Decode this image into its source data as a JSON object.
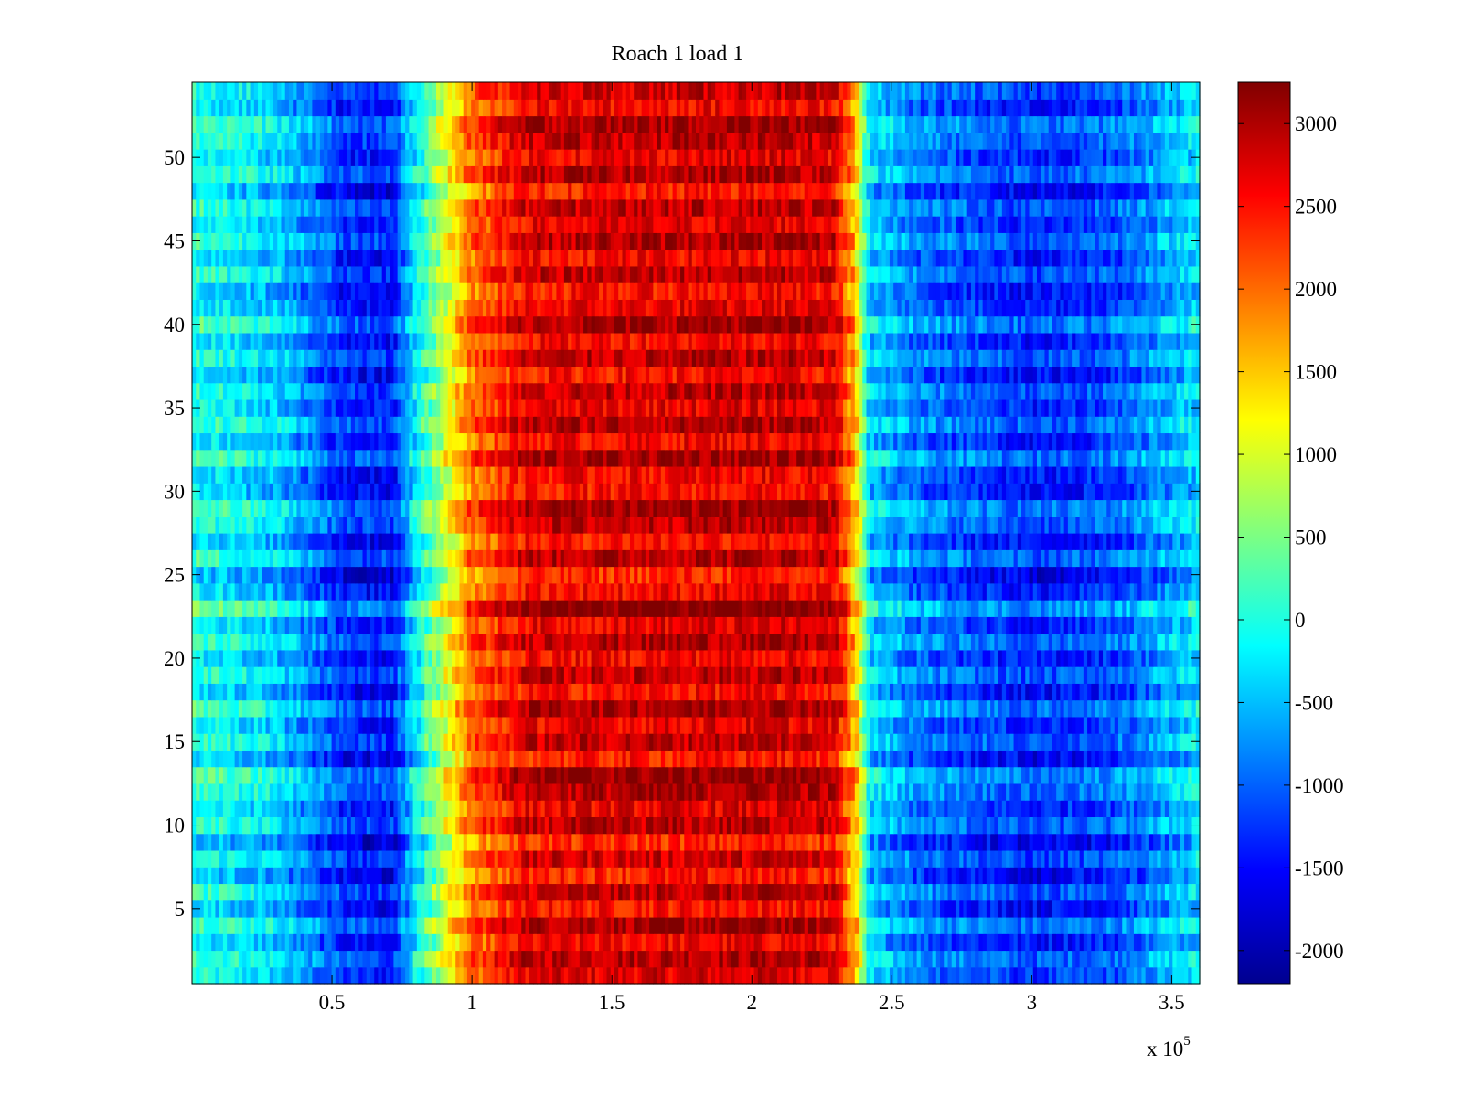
{
  "chart_data": {
    "type": "heatmap",
    "title": "Roach 1 load 1",
    "xlabel": "",
    "ylabel": "",
    "x_multiplier_label": "x 10",
    "x_multiplier_exponent": "5",
    "xlim": [
      0,
      3.6
    ],
    "ylim": [
      0.5,
      54.5
    ],
    "x_ticks": [
      0.5,
      1,
      1.5,
      2,
      2.5,
      3,
      3.5
    ],
    "x_tick_labels": [
      "0.5",
      "1",
      "1.5",
      "2",
      "2.5",
      "3",
      "3.5"
    ],
    "y_ticks": [
      5,
      10,
      15,
      20,
      25,
      30,
      35,
      40,
      45,
      50
    ],
    "y_tick_labels": [
      "5",
      "10",
      "15",
      "20",
      "25",
      "30",
      "35",
      "40",
      "45",
      "50"
    ],
    "rows": 54,
    "colorbar": {
      "colormap": "jet",
      "clim": [
        -2200,
        3250
      ],
      "ticks": [
        -2000,
        -1500,
        -1000,
        -500,
        0,
        500,
        1000,
        1500,
        2000,
        2500,
        3000
      ],
      "tick_labels": [
        "-2000",
        "-1500",
        "-1000",
        "-500",
        "0",
        "500",
        "1000",
        "1500",
        "2000",
        "2500",
        "3000"
      ]
    },
    "value_profile_x": [
      0,
      0.3,
      0.55,
      0.72,
      0.8,
      0.9,
      1.0,
      1.2,
      2.1,
      2.3,
      2.37,
      2.42,
      2.6,
      3.0,
      3.3,
      3.6
    ],
    "value_profile_mean": [
      0,
      -400,
      -1300,
      -1400,
      -200,
      900,
      2000,
      2700,
      2800,
      2700,
      1500,
      -400,
      -900,
      -1300,
      -1100,
      -300
    ],
    "row_offsets": [
      0,
      300,
      -200,
      400,
      -300,
      200,
      -400,
      100,
      -500,
      200,
      -100,
      300,
      500,
      -400,
      200,
      -100,
      400,
      -300,
      200,
      -200,
      300,
      -100,
      600,
      -200,
      -500,
      300,
      -300,
      200,
      400,
      -300,
      -200,
      400,
      -200,
      300,
      -100,
      200,
      -300,
      200,
      -200,
      400,
      -100,
      -300,
      200,
      -200,
      300,
      -100,
      200,
      -400,
      300,
      -100,
      200,
      400,
      -200,
      100
    ]
  }
}
